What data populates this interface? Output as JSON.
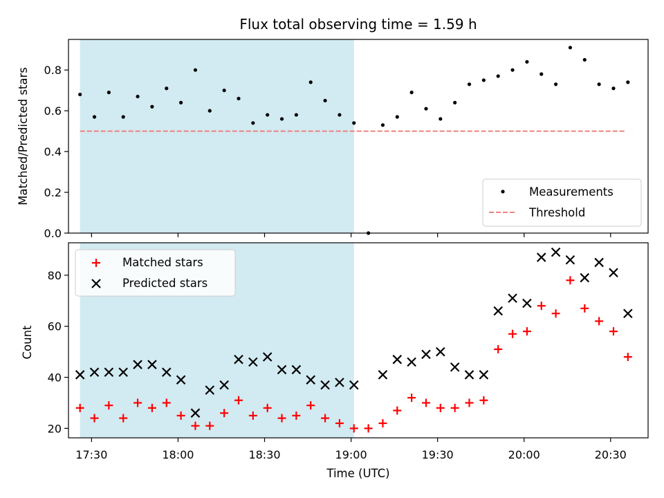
{
  "chart_data": [
    {
      "type": "scatter",
      "title": "Flux total observing time = 1.59 h",
      "xlabel": "",
      "ylabel": "Matched/Predicted stars",
      "ylim": [
        0,
        0.95
      ],
      "yticks": [
        "0.0",
        "0.2",
        "0.4",
        "0.6",
        "0.8"
      ],
      "ytick_values": [
        0,
        0.2,
        0.4,
        0.6,
        0.8
      ],
      "xlim": [
        "17:22",
        "20:43"
      ],
      "shaded_interval": {
        "from": "17:26",
        "to": "19:01",
        "color": "#add8e6"
      },
      "threshold": {
        "name": "Threshold",
        "value": 0.5,
        "from": "17:26",
        "to": "20:35",
        "color": "#f08080"
      },
      "series": [
        {
          "name": "Measurements",
          "marker": "dot",
          "color": "#000000",
          "x": [
            "17:26",
            "17:31",
            "17:36",
            "17:41",
            "17:46",
            "17:51",
            "17:56",
            "18:01",
            "18:06",
            "18:11",
            "18:16",
            "18:21",
            "18:26",
            "18:31",
            "18:36",
            "18:41",
            "18:46",
            "18:51",
            "18:56",
            "19:01",
            "19:06",
            "19:11",
            "19:16",
            "19:21",
            "19:26",
            "19:31",
            "19:36",
            "19:41",
            "19:46",
            "19:51",
            "19:56",
            "20:01",
            "20:06",
            "20:11",
            "20:16",
            "20:21",
            "20:26",
            "20:31",
            "20:36"
          ],
          "y": [
            0.68,
            0.57,
            0.69,
            0.57,
            0.67,
            0.62,
            0.71,
            0.64,
            0.8,
            0.6,
            0.7,
            0.66,
            0.54,
            0.58,
            0.56,
            0.58,
            0.74,
            0.65,
            0.58,
            0.54,
            0.0,
            0.53,
            0.57,
            0.69,
            0.61,
            0.56,
            0.64,
            0.73,
            0.75,
            0.77,
            0.8,
            0.84,
            0.78,
            0.73,
            0.91,
            0.85,
            0.73,
            0.71,
            0.74
          ]
        }
      ],
      "legend": {
        "placement": "bottom-right",
        "entries": [
          "Measurements",
          "Threshold"
        ]
      }
    },
    {
      "type": "scatter",
      "title": "",
      "xlabel": "Time (UTC)",
      "ylabel": "Count",
      "ylim": [
        16.3,
        92.7
      ],
      "yticks": [
        "20",
        "40",
        "60",
        "80"
      ],
      "ytick_values": [
        20,
        40,
        60,
        80
      ],
      "xlim": [
        "17:22",
        "20:43"
      ],
      "xticks": [
        "17:30",
        "18:00",
        "18:30",
        "19:00",
        "19:30",
        "20:00",
        "20:30"
      ],
      "shaded_interval": {
        "from": "17:26",
        "to": "19:01",
        "color": "#add8e6"
      },
      "series": [
        {
          "name": "Matched stars",
          "marker": "plus",
          "color": "#ff0000",
          "x": [
            "17:26",
            "17:31",
            "17:36",
            "17:41",
            "17:46",
            "17:51",
            "17:56",
            "18:01",
            "18:06",
            "18:11",
            "18:16",
            "18:21",
            "18:26",
            "18:31",
            "18:36",
            "18:41",
            "18:46",
            "18:51",
            "18:56",
            "19:01",
            "19:06",
            "19:11",
            "19:16",
            "19:21",
            "19:26",
            "19:31",
            "19:36",
            "19:41",
            "19:46",
            "19:51",
            "19:56",
            "20:01",
            "20:06",
            "20:11",
            "20:16",
            "20:21",
            "20:26",
            "20:31",
            "20:36"
          ],
          "y": [
            28,
            24,
            29,
            24,
            30,
            28,
            30,
            25,
            21,
            21,
            26,
            31,
            25,
            28,
            24,
            25,
            29,
            24,
            22,
            20,
            20,
            22,
            27,
            32,
            30,
            28,
            28,
            30,
            31,
            51,
            57,
            58,
            68,
            65,
            78,
            67,
            62,
            58,
            48
          ]
        },
        {
          "name": "Predicted stars",
          "marker": "x",
          "color": "#000000",
          "x": [
            "17:26",
            "17:31",
            "17:36",
            "17:41",
            "17:46",
            "17:51",
            "17:56",
            "18:01",
            "18:06",
            "18:11",
            "18:16",
            "18:21",
            "18:26",
            "18:31",
            "18:36",
            "18:41",
            "18:46",
            "18:51",
            "18:56",
            "19:01",
            "19:11",
            "19:16",
            "19:21",
            "19:26",
            "19:31",
            "19:36",
            "19:41",
            "19:46",
            "19:51",
            "19:56",
            "20:01",
            "20:06",
            "20:11",
            "20:16",
            "20:21",
            "20:26",
            "20:31",
            "20:36"
          ],
          "y": [
            41,
            42,
            42,
            42,
            45,
            45,
            42,
            39,
            26,
            35,
            37,
            47,
            46,
            48,
            43,
            43,
            39,
            37,
            38,
            37,
            41,
            47,
            46,
            49,
            50,
            44,
            41,
            41,
            66,
            71,
            69,
            87,
            89,
            86,
            79,
            85,
            81,
            65
          ]
        }
      ],
      "legend": {
        "placement": "top-left",
        "entries": [
          "Matched stars",
          "Predicted stars"
        ]
      }
    }
  ]
}
